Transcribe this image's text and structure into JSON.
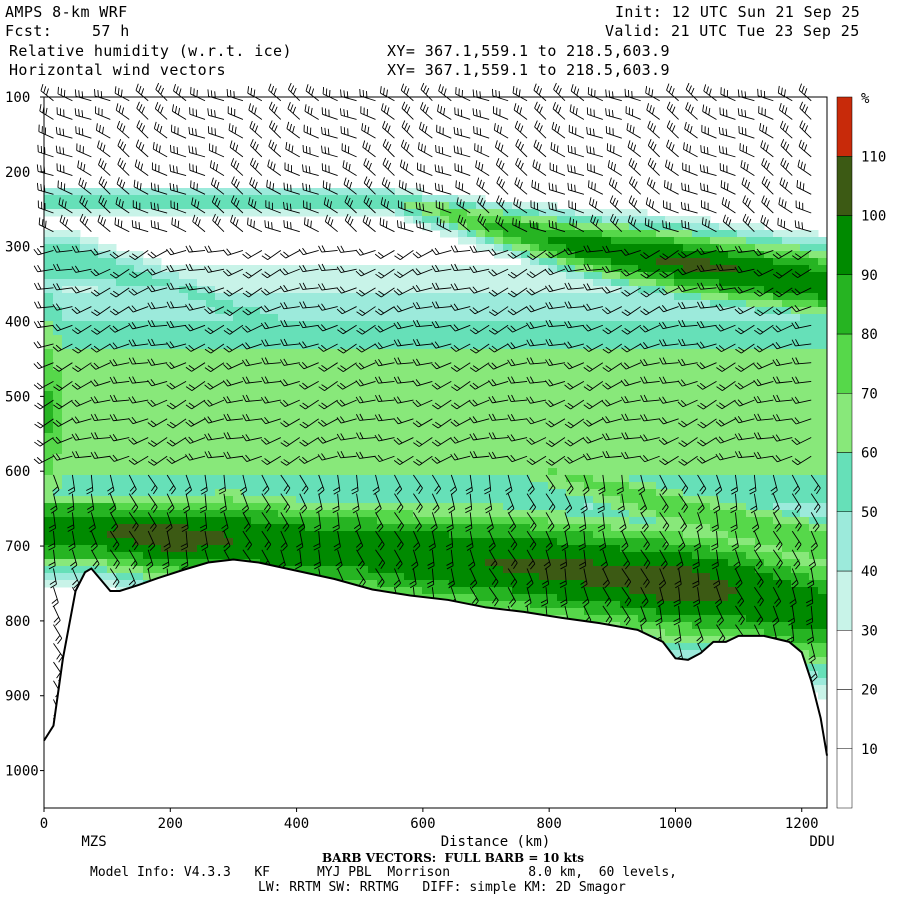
{
  "header": {
    "model": "AMPS 8-km WRF",
    "fcst_label": "Fcst:",
    "fcst_value": "57 h",
    "init": "Init: 12 UTC Sun 21 Sep 25",
    "valid": "Valid: 21 UTC Tue 23 Sep 25",
    "field1": "Relative humidity (w.r.t. ice)",
    "field2": "Horizontal wind vectors",
    "xy1": "XY= 367.1,559.1 to 218.5,603.9",
    "xy2": "XY= 367.1,559.1 to 218.5,603.9"
  },
  "footer": {
    "barb_note": "BARB VECTORS:  FULL BARB = 10 kts",
    "model_info": "Model Info: V4.3.3   KF      MYJ PBL  Morrison          8.0 km,  60 levels,",
    "physics": "LW: RRTM SW: RRTMG   DIFF: simple KM: 2D Smagor"
  },
  "chart_data": {
    "type": "heatmap",
    "title": "Relative humidity (w.r.t. ice)",
    "xlabel": "Distance (km)",
    "ylabel": "",
    "xlim": [
      0,
      1240
    ],
    "ylim": [
      1050,
      100
    ],
    "x_ticks": [
      0,
      200,
      400,
      600,
      800,
      1000,
      1200
    ],
    "y_ticks": [
      100,
      200,
      300,
      400,
      500,
      600,
      700,
      800,
      900,
      1000
    ],
    "x_end_labels": {
      "left": "MZS",
      "right": "DDU"
    },
    "colorbar": {
      "unit": "%",
      "levels": [
        10,
        20,
        30,
        40,
        50,
        60,
        70,
        80,
        90,
        100,
        110
      ],
      "colors": [
        "#ffffff",
        "#ffffff",
        "#ffffff",
        "#c8f3e8",
        "#9ceadb",
        "#66e0b8",
        "#88e87a",
        "#56d84a",
        "#26b422",
        "#008a00",
        "#3c5a14",
        "#c82a0a"
      ]
    },
    "rh_bands": [
      {
        "name": "upper_right_moist",
        "center_x": [
          560,
          700,
          850,
          1000,
          1240
        ],
        "center_p": [
          240,
          270,
          300,
          320,
          350
        ],
        "half_width_p": [
          25,
          40,
          55,
          65,
          70
        ],
        "peak_rh": [
          60,
          80,
          95,
          102,
          98
        ]
      },
      {
        "name": "mid_slanted_moist",
        "center_x": [
          40,
          200,
          400,
          600,
          800,
          1000,
          1240
        ],
        "center_p": [
          320,
          350,
          420,
          520,
          600,
          650,
          700
        ],
        "half_width_p": [
          60,
          40,
          40,
          50,
          60,
          60,
          60
        ],
        "peak_rh": [
          60,
          50,
          60,
          60,
          70,
          75,
          80
        ]
      },
      {
        "name": "low_level_moist",
        "center_x": [
          100,
          200,
          300,
          400,
          500,
          600,
          700,
          800,
          900,
          1000,
          1100,
          1240
        ],
        "center_p": [
          680,
          690,
          690,
          700,
          705,
          715,
          720,
          730,
          740,
          750,
          760,
          790
        ],
        "half_width_p": [
          80,
          90,
          100,
          100,
          110,
          110,
          120,
          120,
          120,
          120,
          120,
          120
        ],
        "peak_rh": [
          100,
          105,
          100,
          98,
          95,
          100,
          100,
          102,
          102,
          105,
          100,
          95
        ]
      },
      {
        "name": "left_edge_column",
        "center_x": [
          0,
          30
        ],
        "center_p": [
          520,
          520
        ],
        "half_width_p": [
          260,
          240
        ],
        "peak_rh": [
          85,
          70
        ]
      }
    ],
    "terrain": {
      "x": [
        0,
        15,
        30,
        50,
        65,
        75,
        90,
        105,
        120,
        150,
        180,
        220,
        260,
        300,
        340,
        400,
        460,
        520,
        580,
        640,
        700,
        760,
        820,
        880,
        940,
        980,
        1000,
        1020,
        1040,
        1060,
        1080,
        1100,
        1140,
        1180,
        1200,
        1215,
        1230,
        1240
      ],
      "pressure_hPa": [
        960,
        940,
        850,
        760,
        735,
        730,
        745,
        760,
        760,
        752,
        743,
        732,
        722,
        718,
        722,
        733,
        744,
        758,
        766,
        772,
        782,
        788,
        796,
        803,
        812,
        828,
        850,
        852,
        843,
        828,
        828,
        820,
        820,
        828,
        842,
        880,
        930,
        980
      ]
    },
    "wind_barbs": {
      "unit": "kts",
      "full_barb": 10,
      "x_spacing_km": 30,
      "p_spacing_hPa": 25,
      "direction_regimes": [
        {
          "region": "upper",
          "p_max": 300,
          "dir_deg": 300,
          "speed_kts": 30
        },
        {
          "region": "middle",
          "p_max": 600,
          "dir_deg": 250,
          "speed_kts": 20
        },
        {
          "region": "lower",
          "p_max": 1000,
          "dir_deg": 160,
          "speed_kts": 25
        }
      ]
    }
  }
}
